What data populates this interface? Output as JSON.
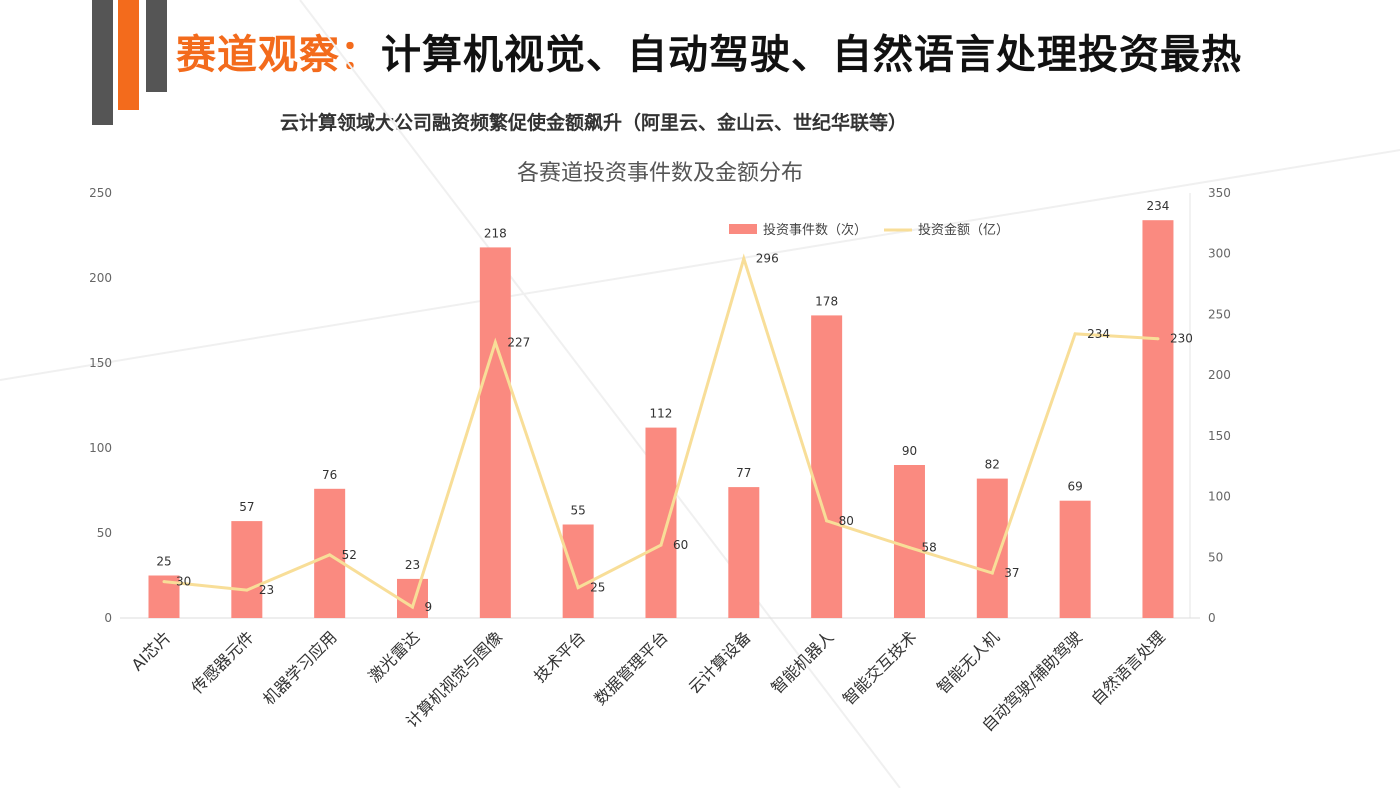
{
  "header": {
    "title_highlight": "赛道观察：",
    "title_rest": "计算机视觉、自动驾驶、自然语言处理投资最热",
    "subtitle": "云计算领域大公司融资频繁促使金额飙升（阿里云、金山云、世纪华联等）"
  },
  "colors": {
    "accent": "#f36b1c",
    "deco_gray": "#555555",
    "bar": "#fa8a80",
    "line": "#f8de98"
  },
  "chart_data": {
    "type": "bar+line",
    "title": "各赛道投资事件数及金额分布",
    "categories": [
      "AI芯片",
      "传感器元件",
      "机器学习应用",
      "激光雷达",
      "计算机视觉与图像",
      "技术平台",
      "数据管理平台",
      "云计算设备",
      "智能机器人",
      "智能交互技术",
      "智能无人机",
      "自动驾驶/辅助驾驶",
      "自然语言处理"
    ],
    "series": [
      {
        "name": "投资事件数（次）",
        "type": "bar",
        "axis": "left",
        "values": [
          25,
          57,
          76,
          23,
          218,
          55,
          112,
          77,
          178,
          90,
          82,
          69,
          234
        ]
      },
      {
        "name": "投资金额（亿）",
        "type": "line",
        "axis": "right",
        "values": [
          30,
          23,
          52,
          9,
          227,
          25,
          60,
          296,
          80,
          58,
          37,
          234,
          230
        ]
      }
    ],
    "left_axis": {
      "ylim": [
        0,
        250
      ],
      "ticks": [
        0,
        50,
        100,
        150,
        200,
        250
      ]
    },
    "right_axis": {
      "ylim": [
        0,
        350
      ],
      "ticks": [
        0,
        50,
        100,
        150,
        200,
        250,
        300,
        350
      ]
    },
    "legend_position": "top-right",
    "grid": false
  }
}
